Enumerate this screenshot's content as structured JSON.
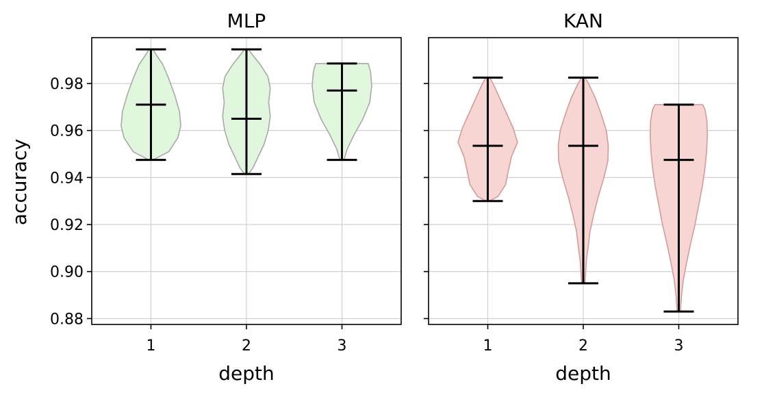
{
  "chart_data": {
    "type": "violin",
    "ylabel": "accuracy",
    "ylim": [
      0.8775,
      0.9995
    ],
    "yticks": [
      "0.88",
      "0.90",
      "0.92",
      "0.94",
      "0.96",
      "0.98"
    ],
    "ytick_values": [
      0.88,
      0.9,
      0.92,
      0.94,
      0.96,
      0.98
    ],
    "grid": true,
    "panels": [
      {
        "title": "MLP",
        "xlabel": "depth",
        "categories": [
          "1",
          "2",
          "3"
        ],
        "fill_color": "#e0f7de",
        "edge_color": "#a6aaa4",
        "violins": [
          {
            "min": 0.9475,
            "median": 0.971,
            "max": 0.9945,
            "profile": [
              [
                0.9475,
                0.05
              ],
              [
                0.951,
                0.45
              ],
              [
                0.957,
                0.68
              ],
              [
                0.962,
                0.75
              ],
              [
                0.968,
                0.72
              ],
              [
                0.975,
                0.6
              ],
              [
                0.982,
                0.45
              ],
              [
                0.988,
                0.3
              ],
              [
                0.992,
                0.14
              ],
              [
                0.9945,
                0.05
              ]
            ]
          },
          {
            "min": 0.9415,
            "median": 0.965,
            "max": 0.9945,
            "profile": [
              [
                0.9415,
                0.05
              ],
              [
                0.944,
                0.16
              ],
              [
                0.949,
                0.3
              ],
              [
                0.954,
                0.44
              ],
              [
                0.96,
                0.55
              ],
              [
                0.966,
                0.6
              ],
              [
                0.972,
                0.56
              ],
              [
                0.978,
                0.6
              ],
              [
                0.983,
                0.54
              ],
              [
                0.988,
                0.35
              ],
              [
                0.992,
                0.16
              ],
              [
                0.9945,
                0.05
              ]
            ]
          },
          {
            "min": 0.9475,
            "median": 0.977,
            "max": 0.9885,
            "profile": [
              [
                0.9475,
                0.05
              ],
              [
                0.952,
                0.13
              ],
              [
                0.958,
                0.3
              ],
              [
                0.965,
                0.53
              ],
              [
                0.972,
                0.7
              ],
              [
                0.979,
                0.75
              ],
              [
                0.985,
                0.72
              ],
              [
                0.9885,
                0.66
              ]
            ]
          }
        ]
      },
      {
        "title": "KAN",
        "xlabel": "depth",
        "categories": [
          "1",
          "2",
          "3"
        ],
        "fill_color": "#f6d5d2",
        "edge_color": "#d19c99",
        "violins": [
          {
            "min": 0.93,
            "median": 0.9535,
            "max": 0.9825,
            "profile": [
              [
                0.93,
                0.05
              ],
              [
                0.932,
                0.26
              ],
              [
                0.937,
                0.45
              ],
              [
                0.943,
                0.52
              ],
              [
                0.949,
                0.6
              ],
              [
                0.955,
                0.75
              ],
              [
                0.961,
                0.64
              ],
              [
                0.967,
                0.48
              ],
              [
                0.973,
                0.32
              ],
              [
                0.979,
                0.16
              ],
              [
                0.9825,
                0.05
              ]
            ]
          },
          {
            "min": 0.895,
            "median": 0.9535,
            "max": 0.9825,
            "profile": [
              [
                0.895,
                0.04
              ],
              [
                0.9,
                0.06
              ],
              [
                0.905,
                0.08
              ],
              [
                0.91,
                0.12
              ],
              [
                0.917,
                0.17
              ],
              [
                0.924,
                0.26
              ],
              [
                0.932,
                0.38
              ],
              [
                0.94,
                0.52
              ],
              [
                0.947,
                0.62
              ],
              [
                0.9535,
                0.63
              ],
              [
                0.96,
                0.58
              ],
              [
                0.967,
                0.45
              ],
              [
                0.974,
                0.3
              ],
              [
                0.979,
                0.16
              ],
              [
                0.9825,
                0.05
              ]
            ]
          },
          {
            "min": 0.883,
            "median": 0.9475,
            "max": 0.971,
            "profile": [
              [
                0.883,
                0.04
              ],
              [
                0.89,
                0.07
              ],
              [
                0.897,
                0.12
              ],
              [
                0.904,
                0.2
              ],
              [
                0.912,
                0.3
              ],
              [
                0.92,
                0.41
              ],
              [
                0.928,
                0.5
              ],
              [
                0.936,
                0.59
              ],
              [
                0.944,
                0.66
              ],
              [
                0.951,
                0.7
              ],
              [
                0.958,
                0.72
              ],
              [
                0.964,
                0.71
              ],
              [
                0.969,
                0.66
              ],
              [
                0.971,
                0.6
              ]
            ]
          }
        ]
      }
    ]
  }
}
